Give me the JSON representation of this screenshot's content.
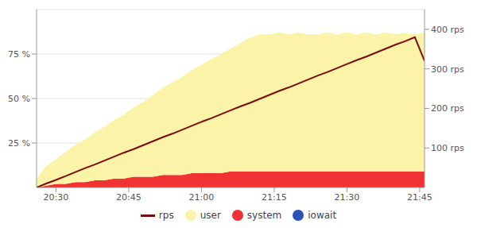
{
  "chart_data": {
    "type": "area",
    "stacked": true,
    "grid": true,
    "legend": "bottom",
    "x": [
      1226,
      1228,
      1230,
      1232,
      1234,
      1236,
      1238,
      1240,
      1242,
      1244,
      1246,
      1248,
      1250,
      1252,
      1254,
      1256,
      1258,
      1260,
      1262,
      1264,
      1266,
      1268,
      1270,
      1272,
      1274,
      1276,
      1278,
      1280,
      1282,
      1284,
      1286,
      1288,
      1290,
      1292,
      1294,
      1296,
      1298,
      1300,
      1302,
      1304,
      1306
    ],
    "xlim": [
      1226,
      1306
    ],
    "xticks": [
      {
        "value": 1230,
        "label": "20:30"
      },
      {
        "value": 1245,
        "label": "20:45"
      },
      {
        "value": 1260,
        "label": "21:00"
      },
      {
        "value": 1275,
        "label": "21:15"
      },
      {
        "value": 1290,
        "label": "21:30"
      },
      {
        "value": 1305,
        "label": "21:45"
      }
    ],
    "ylim": [
      0,
      100
    ],
    "yticks": [
      {
        "value": 25,
        "label": "25 %"
      },
      {
        "value": 50,
        "label": "50 %"
      },
      {
        "value": 75,
        "label": "75 %"
      }
    ],
    "y2lim": [
      0,
      450
    ],
    "y2ticks": [
      {
        "value": 100,
        "label": "100 rps"
      },
      {
        "value": 200,
        "label": "200 rps"
      },
      {
        "value": 300,
        "label": "300 rps"
      },
      {
        "value": 400,
        "label": "400 rps"
      }
    ],
    "series": [
      {
        "name": "rps",
        "type": "line",
        "axis": "y2",
        "color": "#7a0a0a",
        "values": [
          0,
          10,
          19,
          29,
          39,
          49,
          58,
          68,
          78,
          88,
          97,
          107,
          117,
          127,
          136,
          146,
          156,
          166,
          175,
          185,
          195,
          205,
          214,
          224,
          234,
          244,
          253,
          263,
          273,
          283,
          292,
          302,
          312,
          322,
          331,
          341,
          351,
          361,
          370,
          380,
          320
        ]
      },
      {
        "name": "user",
        "type": "area",
        "color": "#fbf4a8",
        "values": [
          5,
          11,
          14,
          18,
          21,
          24,
          27,
          30,
          33,
          36,
          39,
          42,
          46,
          49,
          52,
          55,
          58,
          61,
          64,
          67,
          69,
          72,
          75,
          77,
          77,
          78,
          77,
          78,
          77,
          77,
          78,
          77,
          78,
          77,
          78,
          77,
          78,
          77,
          78,
          77,
          78
        ]
      },
      {
        "name": "system",
        "type": "area",
        "color": "#f03232",
        "values": [
          0,
          1,
          2,
          2,
          3,
          3,
          4,
          4,
          5,
          5,
          6,
          6,
          6,
          7,
          7,
          7,
          8,
          8,
          8,
          8,
          9,
          9,
          9,
          9,
          9,
          9,
          9,
          9,
          9,
          9,
          9,
          9,
          9,
          9,
          9,
          9,
          9,
          9,
          9,
          9,
          9
        ]
      },
      {
        "name": "iowait",
        "type": "area",
        "color": "#2b53b5",
        "values": [
          0,
          0,
          0,
          0,
          0,
          0,
          0,
          0,
          0,
          0,
          0,
          0,
          0,
          0,
          0,
          0,
          0,
          0,
          0,
          0,
          0,
          0,
          0,
          0,
          0,
          0,
          0,
          0,
          0,
          0,
          0,
          0,
          0,
          0,
          0,
          0,
          0,
          0,
          0,
          0,
          0
        ]
      }
    ]
  }
}
